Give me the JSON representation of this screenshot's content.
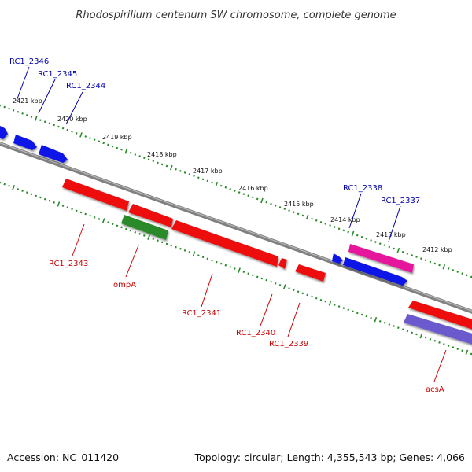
{
  "title": "Rhodospirillum centenum SW chromosome, complete genome",
  "colors": {
    "backbone": "#808080",
    "tick": "#2a8a2a",
    "forward_label": "#0000aa",
    "reverse_label": "#cc0000",
    "cds_forward": "#0a14e6",
    "cds_reverse": "#ee1111",
    "ompA": "#2a8a2a",
    "pink": "#e6199c",
    "purple": "#6a5acd"
  },
  "kbp_markers": [
    {
      "label": "2421 kbp"
    },
    {
      "label": "2420 kbp"
    },
    {
      "label": "2419 kbp"
    },
    {
      "label": "2418 kbp"
    },
    {
      "label": "2417 kbp"
    },
    {
      "label": "2416 kbp"
    },
    {
      "label": "2415 kbp"
    },
    {
      "label": "2414 kbp"
    },
    {
      "label": "2413 kbp"
    },
    {
      "label": "2412 kbp"
    }
  ],
  "gene_labels": {
    "forward": [
      "RC1_2346",
      "RC1_2345",
      "RC1_2344",
      "RC1_2338",
      "RC1_2337"
    ],
    "reverse": [
      "RC1_2343",
      "ompA",
      "RC1_2341",
      "RC1_2340",
      "RC1_2339",
      "acsA"
    ]
  },
  "footer": {
    "accession": "Accession: NC_011420",
    "topology": "Topology: circular; Length: 4,355,543 bp; Genes: 4,066"
  }
}
